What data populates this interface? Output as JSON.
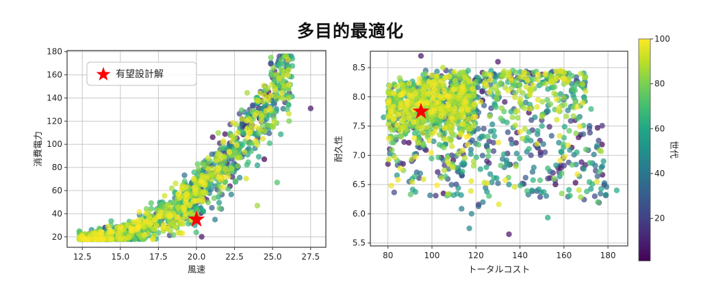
{
  "figure": {
    "title": "多目的最適化"
  },
  "chart_data": [
    {
      "type": "scatter",
      "id": "left",
      "title": "",
      "xlabel": "風速",
      "ylabel": "消費電力",
      "xlim": [
        11.5,
        28.5
      ],
      "ylim": [
        11,
        181
      ],
      "xticks": [
        12.5,
        15.0,
        17.5,
        20.0,
        22.5,
        25.0,
        27.5
      ],
      "xtick_labels": [
        "12.5",
        "15.0",
        "17.5",
        "20.0",
        "22.5",
        "25.0",
        "27.5"
      ],
      "yticks": [
        20,
        40,
        60,
        80,
        100,
        120,
        140,
        160,
        180
      ],
      "ytick_labels": [
        "20",
        "40",
        "60",
        "80",
        "100",
        "120",
        "140",
        "160",
        "180"
      ],
      "grid": true,
      "legend": {
        "position": "upper left",
        "entries": [
          {
            "label": "有望設計解",
            "marker": "red-star"
          }
        ]
      },
      "color_by": "世代",
      "highlight": {
        "label": "有望設計解",
        "x": 20.0,
        "y": 35,
        "color": "#ff0000",
        "marker": "star"
      },
      "distribution": "y rises convexly with x: ~20 at x=12.5, ~35 at x=18, ~60 at x=20.5, ~100 at x=22.5, ~140 at x=24, ~170 at x=26; later generations (yellow) concentrated at low x/low y",
      "sample_points": [
        {
          "x": 12.3,
          "y": 25,
          "gen": 70
        },
        {
          "x": 12.5,
          "y": 21,
          "gen": 70
        },
        {
          "x": 13.5,
          "y": 22,
          "gen": 95
        },
        {
          "x": 14.0,
          "y": 28,
          "gen": 5
        },
        {
          "x": 15.0,
          "y": 24,
          "gen": 95
        },
        {
          "x": 15.5,
          "y": 30,
          "gen": 95
        },
        {
          "x": 16.5,
          "y": 32,
          "gen": 90
        },
        {
          "x": 17.5,
          "y": 38,
          "gen": 98
        },
        {
          "x": 18.5,
          "y": 40,
          "gen": 95
        },
        {
          "x": 19.5,
          "y": 48,
          "gen": 85
        },
        {
          "x": 20.0,
          "y": 55,
          "gen": 60
        },
        {
          "x": 20.5,
          "y": 65,
          "gen": 80
        },
        {
          "x": 21.0,
          "y": 75,
          "gen": 40
        },
        {
          "x": 21.5,
          "y": 85,
          "gen": 30
        },
        {
          "x": 22.0,
          "y": 95,
          "gen": 10
        },
        {
          "x": 22.5,
          "y": 105,
          "gen": 50
        },
        {
          "x": 23.0,
          "y": 118,
          "gen": 40
        },
        {
          "x": 23.5,
          "y": 130,
          "gen": 20
        },
        {
          "x": 24.0,
          "y": 140,
          "gen": 60
        },
        {
          "x": 24.5,
          "y": 150,
          "gen": 30
        },
        {
          "x": 25.0,
          "y": 160,
          "gen": 80
        },
        {
          "x": 25.5,
          "y": 170,
          "gen": 70
        },
        {
          "x": 26.3,
          "y": 174,
          "gen": 65
        },
        {
          "x": 26.0,
          "y": 165,
          "gen": 15
        },
        {
          "x": 27.5,
          "y": 131,
          "gen": 5
        },
        {
          "x": 25.3,
          "y": 67,
          "gen": 72
        },
        {
          "x": 24.0,
          "y": 47,
          "gen": 85
        }
      ]
    },
    {
      "type": "scatter",
      "id": "right",
      "title": "",
      "xlabel": "トータルコスト",
      "ylabel": "耐久性",
      "xlim": [
        72,
        189
      ],
      "ylim": [
        5.45,
        8.78
      ],
      "xticks": [
        80,
        100,
        120,
        140,
        160,
        180
      ],
      "xtick_labels": [
        "80",
        "100",
        "120",
        "140",
        "160",
        "180"
      ],
      "yticks": [
        5.5,
        6.0,
        6.5,
        7.0,
        7.5,
        8.0,
        8.5
      ],
      "ytick_labels": [
        "5.5",
        "6.0",
        "6.5",
        "7.0",
        "7.5",
        "8.0",
        "8.5"
      ],
      "grid": true,
      "color_by": "世代",
      "highlight": {
        "label": "有望設計解",
        "x": 95,
        "y": 7.75,
        "color": "#ff0000",
        "marker": "star"
      },
      "distribution": "dense cloud x 78-170, y 6.8-8.6; late generations (yellow/green) concentrated at x 80-120, y 7.3-8.5; early generations (purple) scattered low y",
      "sample_points": [
        {
          "x": 78,
          "y": 7.65,
          "gen": 55
        },
        {
          "x": 80,
          "y": 7.93,
          "gen": 55
        },
        {
          "x": 80,
          "y": 6.85,
          "gen": 5
        },
        {
          "x": 88,
          "y": 7.4,
          "gen": 80
        },
        {
          "x": 95,
          "y": 8.7,
          "gen": 5
        },
        {
          "x": 100,
          "y": 8.1,
          "gen": 95
        },
        {
          "x": 105,
          "y": 8.5,
          "gen": 90
        },
        {
          "x": 110,
          "y": 8.0,
          "gen": 95
        },
        {
          "x": 115,
          "y": 7.6,
          "gen": 85
        },
        {
          "x": 120,
          "y": 7.2,
          "gen": 40
        },
        {
          "x": 125,
          "y": 6.9,
          "gen": 10
        },
        {
          "x": 130,
          "y": 8.6,
          "gen": 5
        },
        {
          "x": 135,
          "y": 6.5,
          "gen": 50
        },
        {
          "x": 135,
          "y": 5.65,
          "gen": 5
        },
        {
          "x": 140,
          "y": 8.2,
          "gen": 80
        },
        {
          "x": 145,
          "y": 7.0,
          "gen": 20
        },
        {
          "x": 150,
          "y": 7.5,
          "gen": 60
        },
        {
          "x": 155,
          "y": 6.7,
          "gen": 10
        },
        {
          "x": 160,
          "y": 7.3,
          "gen": 65
        },
        {
          "x": 165,
          "y": 7.6,
          "gen": 5
        },
        {
          "x": 170,
          "y": 7.1,
          "gen": 75
        },
        {
          "x": 175,
          "y": 6.55,
          "gen": 95
        },
        {
          "x": 178,
          "y": 6.9,
          "gen": 55
        },
        {
          "x": 184,
          "y": 6.4,
          "gen": 60
        },
        {
          "x": 117,
          "y": 5.75,
          "gen": 45
        },
        {
          "x": 118,
          "y": 6.0,
          "gen": 45
        },
        {
          "x": 174,
          "y": 6.3,
          "gen": 20
        }
      ]
    }
  ],
  "colorbar": {
    "label": "世代",
    "colormap": "viridis",
    "range": [
      1,
      100
    ],
    "ticks": [
      20,
      40,
      60,
      80,
      100
    ],
    "tick_labels": [
      "20",
      "40",
      "60",
      "80",
      "100"
    ]
  },
  "colors": {
    "highlight": "#ff0000",
    "grid": "#b0b0b0",
    "axis": "#333333"
  }
}
